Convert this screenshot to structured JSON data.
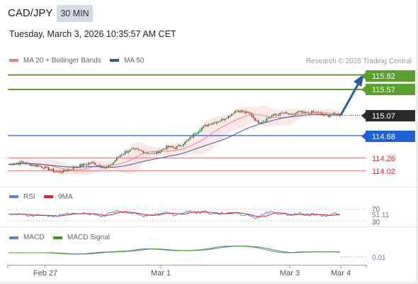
{
  "header": {
    "symbol": "CAD/JPY",
    "timeframe": "30 MIN",
    "datetime": "Tuesday, March 3, 2026 10:35:57 AM CET"
  },
  "price_legend": {
    "ma20_label": "MA 20 + Bollinger Bands",
    "ma50_label": "MA 50",
    "copyright": "Research © 2026 Trading Central"
  },
  "levels": {
    "r2": "115.82",
    "r1": "115.57",
    "current": "115.07",
    "pivot": "114.68",
    "s1": "114.26",
    "s2": "114.02"
  },
  "rsi_panel": {
    "rsi_label": "RSI",
    "ma_label": "9MA",
    "upper": "70",
    "value": "51.11",
    "lower": "30"
  },
  "macd_panel": {
    "macd_label": "MACD",
    "signal_label": "MACD Signal",
    "value": "0.01"
  },
  "x_axis": [
    "Feb 27",
    "Mar 1",
    "Mar 3",
    "Mar 4"
  ],
  "colors": {
    "up_candle": "#1e8a2e",
    "down_candle": "#c62828",
    "resistance": "#5aa02c",
    "pivot": "#1e62d8",
    "support": "#d84a4a",
    "current": "#2a2a2a",
    "ma20": "#f08080",
    "ma50": "#3b5998",
    "rsi": "#5b7fd4",
    "rsi_ma": "#e02020",
    "macd": "#5b7fd4",
    "macd_signal": "#3c9a1c",
    "arrow": "#2a5ba8"
  },
  "chart_data": {
    "type": "candlestick",
    "symbol": "CAD/JPY",
    "interval": "30 MIN",
    "price_levels": [
      115.82,
      115.57,
      115.07,
      114.68,
      114.26,
      114.02
    ],
    "close_path": [
      [
        0,
        114.14
      ],
      [
        5,
        114.16
      ],
      [
        10,
        114.18
      ],
      [
        15,
        114.14
      ],
      [
        20,
        114.12
      ],
      [
        25,
        114.09
      ],
      [
        30,
        114.04
      ],
      [
        35,
        114.0
      ],
      [
        40,
        114.01
      ],
      [
        45,
        114.06
      ],
      [
        50,
        114.1
      ],
      [
        55,
        114.14
      ],
      [
        60,
        114.17
      ],
      [
        65,
        114.13
      ],
      [
        70,
        114.06
      ],
      [
        75,
        114.15
      ],
      [
        80,
        114.3
      ],
      [
        85,
        114.38
      ],
      [
        90,
        114.42
      ],
      [
        95,
        114.4
      ],
      [
        100,
        114.36
      ],
      [
        105,
        114.34
      ],
      [
        110,
        114.4
      ],
      [
        115,
        114.47
      ],
      [
        120,
        114.45
      ],
      [
        125,
        114.5
      ],
      [
        130,
        114.6
      ],
      [
        135,
        114.72
      ],
      [
        140,
        114.83
      ],
      [
        145,
        114.9
      ],
      [
        150,
        114.94
      ],
      [
        155,
        114.98
      ],
      [
        160,
        115.06
      ],
      [
        165,
        115.16
      ],
      [
        170,
        115.12
      ],
      [
        175,
        115.09
      ],
      [
        180,
        114.93
      ],
      [
        185,
        114.96
      ],
      [
        190,
        115.05
      ],
      [
        195,
        115.08
      ],
      [
        200,
        115.1
      ],
      [
        205,
        115.06
      ],
      [
        210,
        115.13
      ],
      [
        215,
        115.09
      ],
      [
        220,
        115.12
      ],
      [
        225,
        115.1
      ],
      [
        230,
        115.05
      ],
      [
        235,
        115.08
      ],
      [
        240,
        115.07
      ]
    ],
    "projection": {
      "from": 115.07,
      "to": 115.82
    },
    "rsi": {
      "value": 51.11,
      "levels": [
        70,
        30
      ]
    },
    "macd": {
      "value": 0.01
    },
    "x_tick_labels": [
      "Feb 27",
      "Mar 1",
      "Mar 3",
      "Mar 4"
    ]
  }
}
